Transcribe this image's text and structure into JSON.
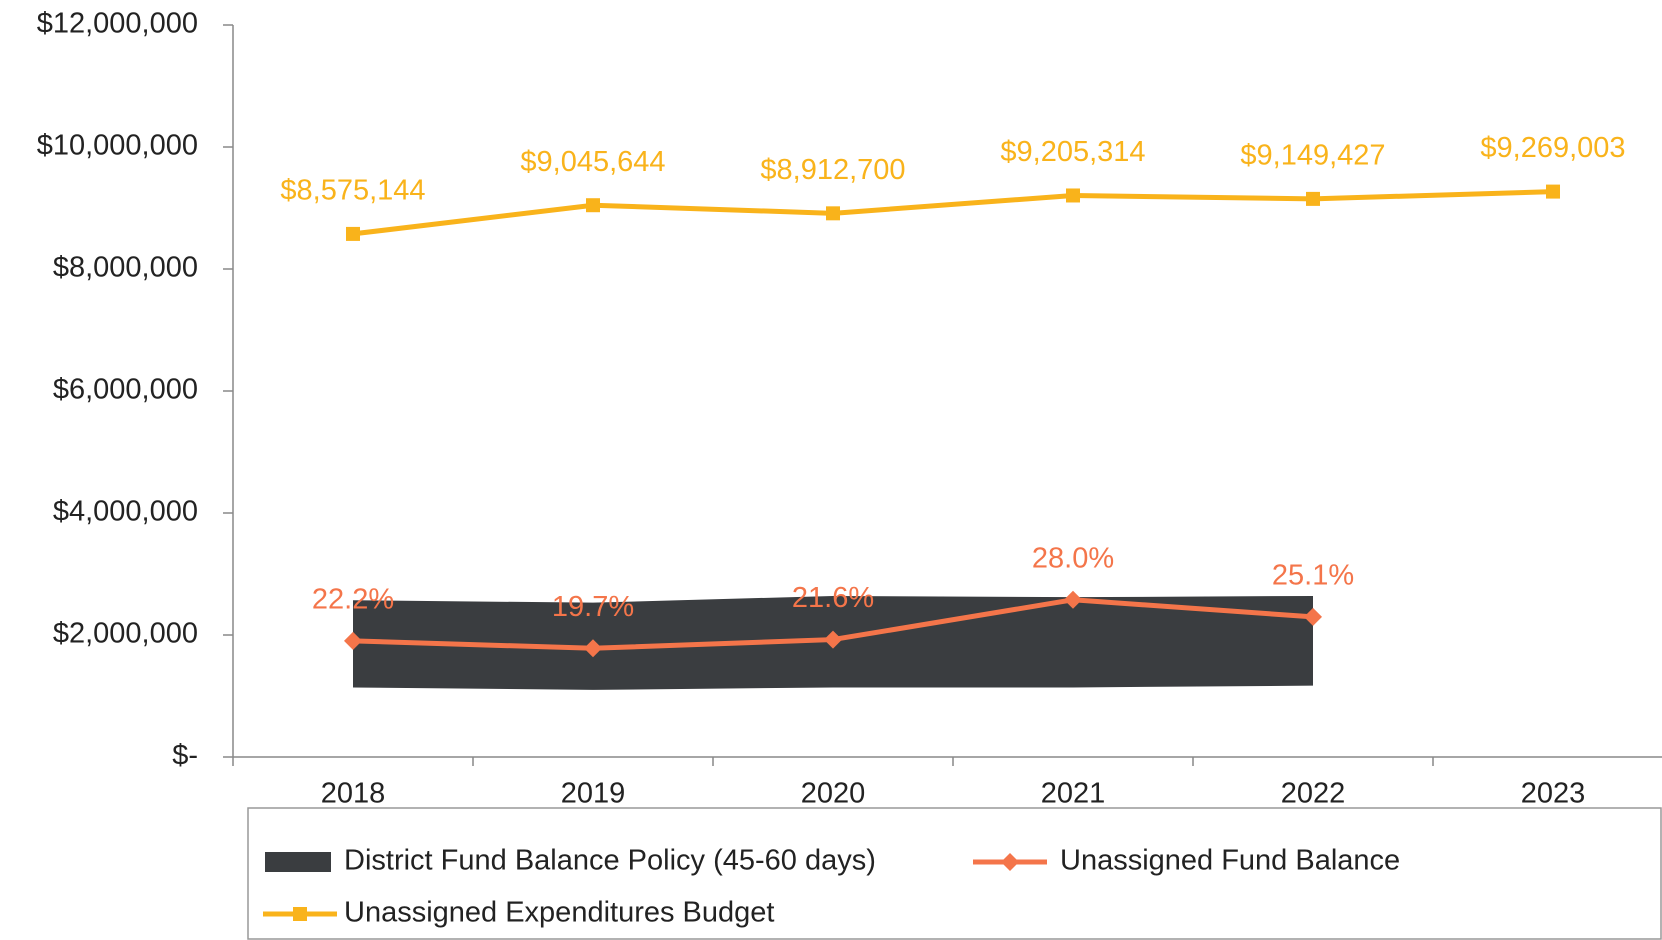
{
  "chart_data": {
    "type": "line",
    "categories": [
      "2018",
      "2019",
      "2020",
      "2021",
      "2022",
      "2023"
    ],
    "ylim": [
      0,
      12000000
    ],
    "yticks": [
      {
        "value": 0,
        "label": "$-"
      },
      {
        "value": 2000000,
        "label": "$2,000,000"
      },
      {
        "value": 4000000,
        "label": "$4,000,000"
      },
      {
        "value": 6000000,
        "label": "$6,000,000"
      },
      {
        "value": 8000000,
        "label": "$8,000,000"
      },
      {
        "value": 10000000,
        "label": "$10,000,000"
      },
      {
        "value": 12000000,
        "label": "$12,000,000"
      }
    ],
    "series": [
      {
        "name": "District Fund Balance Policy (45-60 days)",
        "type": "band",
        "color": "#3a3d40",
        "low": [
          1140000,
          1100000,
          1140000,
          1140000,
          1170000,
          null
        ],
        "high": [
          2570000,
          2530000,
          2640000,
          2620000,
          2640000,
          null
        ]
      },
      {
        "name": "Unassigned Fund Balance",
        "type": "line",
        "marker": "diamond",
        "color": "#f4754a",
        "values": [
          1903682,
          1781992,
          1925143,
          2577488,
          2296506,
          null
        ],
        "percent_labels": [
          "22.2%",
          "19.7%",
          "21.6%",
          "28.0%",
          "25.1%",
          null
        ]
      },
      {
        "name": "Unassigned Expenditures Budget",
        "type": "line",
        "marker": "square",
        "color": "#f9b31b",
        "values": [
          8575144,
          9045644,
          8912700,
          9205314,
          9149427,
          9269003
        ],
        "value_labels": [
          "$8,575,144",
          "$9,045,644",
          "$8,912,700",
          "$9,205,314",
          "$9,149,427",
          "$9,269,003"
        ]
      }
    ]
  }
}
